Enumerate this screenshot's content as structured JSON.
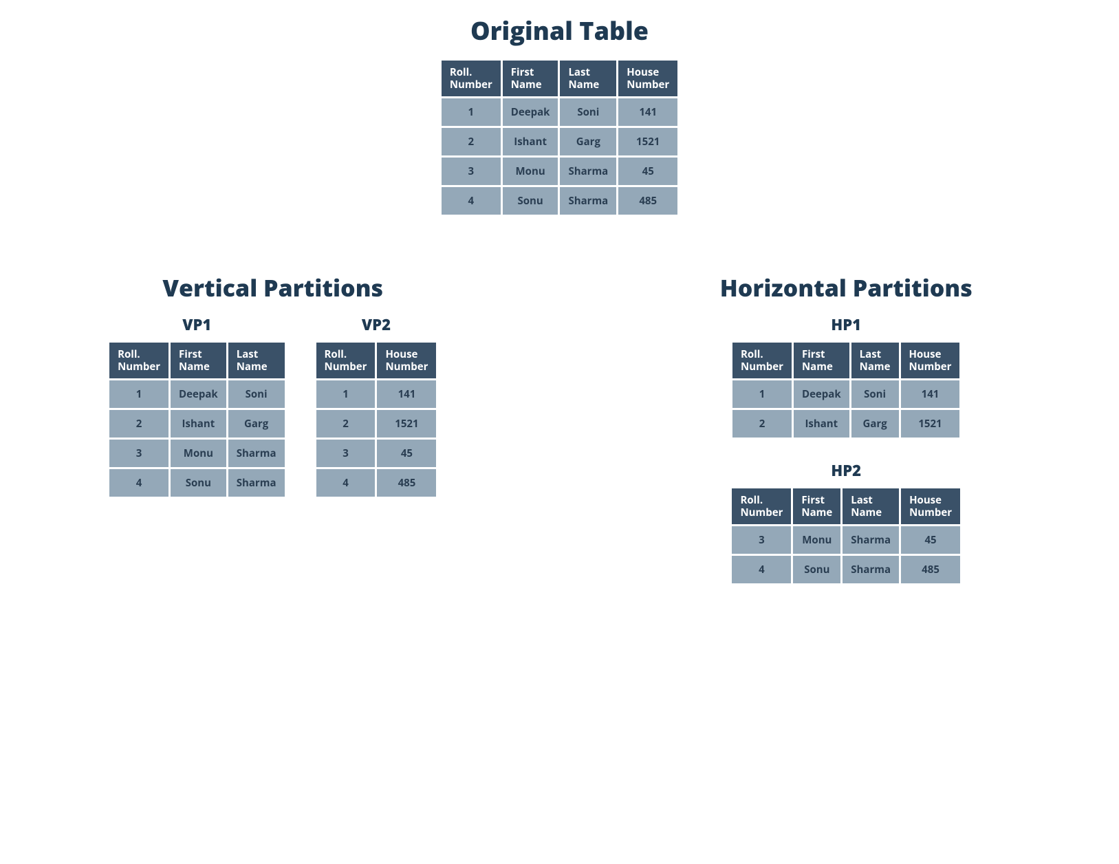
{
  "colors": {
    "header_bg": "#3a5168",
    "header_fg": "#ffffff",
    "cell_bg": "#94a8b8",
    "cell_fg": "#2a3e52",
    "title_fg": "#1f3a52",
    "page_bg": "#ffffff"
  },
  "typography": {
    "main_title_fontsize": 36,
    "section_title_fontsize": 34,
    "sub_title_fontsize": 22,
    "cell_fontsize": 15,
    "font_family": "Open Sans / Segoe UI",
    "header_weight": 700,
    "title_weight": 800
  },
  "original": {
    "title": "Original Table",
    "columns": [
      "Roll. Number",
      "First Name",
      "Last Name",
      "House Number"
    ],
    "rows": [
      [
        "1",
        "Deepak",
        "Soni",
        "141"
      ],
      [
        "2",
        "Ishant",
        "Garg",
        "1521"
      ],
      [
        "3",
        "Monu",
        "Sharma",
        "45"
      ],
      [
        "4",
        "Sonu",
        "Sharma",
        "485"
      ]
    ]
  },
  "vertical": {
    "title": "Vertical Partitions",
    "vp1": {
      "label": "VP1",
      "columns": [
        "Roll. Number",
        "First Name",
        "Last Name"
      ],
      "rows": [
        [
          "1",
          "Deepak",
          "Soni"
        ],
        [
          "2",
          "Ishant",
          "Garg"
        ],
        [
          "3",
          "Monu",
          "Sharma"
        ],
        [
          "4",
          "Sonu",
          "Sharma"
        ]
      ]
    },
    "vp2": {
      "label": "VP2",
      "columns": [
        "Roll. Number",
        "House Number"
      ],
      "rows": [
        [
          "1",
          "141"
        ],
        [
          "2",
          "1521"
        ],
        [
          "3",
          "45"
        ],
        [
          "4",
          "485"
        ]
      ]
    }
  },
  "horizontal": {
    "title": "Horizontal Partitions",
    "hp1": {
      "label": "HP1",
      "columns": [
        "Roll. Number",
        "First Name",
        "Last Name",
        "House Number"
      ],
      "rows": [
        [
          "1",
          "Deepak",
          "Soni",
          "141"
        ],
        [
          "2",
          "Ishant",
          "Garg",
          "1521"
        ]
      ]
    },
    "hp2": {
      "label": "HP2",
      "columns": [
        "Roll. Number",
        "First Name",
        "Last Name",
        "House Number"
      ],
      "rows": [
        [
          "3",
          "Monu",
          "Sharma",
          "45"
        ],
        [
          "4",
          "Sonu",
          "Sharma",
          "485"
        ]
      ]
    }
  }
}
